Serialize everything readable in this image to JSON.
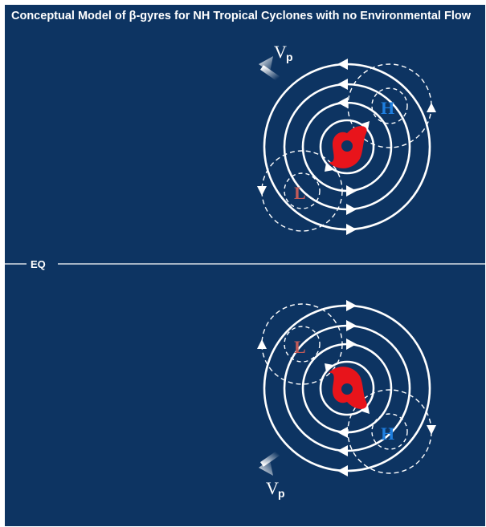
{
  "title": "Conceptual Model of  β-gyres for NH Tropical Cyclones with no Environmental Flow",
  "equator_label": "EQ",
  "north_panel": {
    "propagation_label": "V",
    "propagation_subscript": "p",
    "high_label": "H",
    "low_label": "L"
  },
  "south_panel": {
    "propagation_label": "V",
    "propagation_subscript": "p",
    "high_label": "H",
    "low_label": "L"
  },
  "colors": {
    "background": "#0d3462",
    "lines": "#ffffff",
    "high": "#1e7fe0",
    "low": "#c25a58",
    "cyclone": "#e8141b"
  }
}
